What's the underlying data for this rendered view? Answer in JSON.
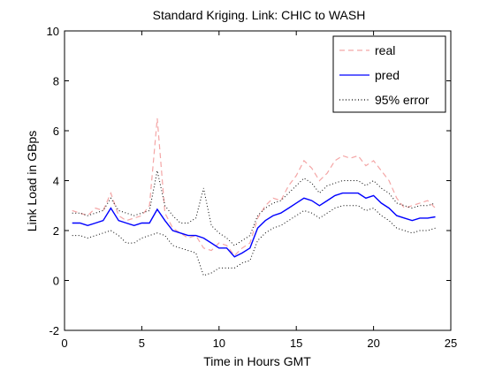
{
  "chart_data": {
    "type": "line",
    "title": "Standard Kriging.  Link:  CHIC to WASH",
    "xlabel": "Time in Hours GMT",
    "ylabel": "Link Load in GBps",
    "xlim": [
      0,
      25
    ],
    "ylim": [
      -2,
      10
    ],
    "xticks": [
      0,
      5,
      10,
      15,
      20,
      25
    ],
    "yticks": [
      -2,
      0,
      2,
      4,
      6,
      8,
      10
    ],
    "grid": false,
    "legend": {
      "placement": "top-right"
    },
    "x": [
      0.5,
      1,
      1.5,
      2,
      2.5,
      3,
      3.5,
      4,
      4.5,
      5,
      5.5,
      6,
      6.5,
      7,
      7.5,
      8,
      8.5,
      9,
      9.5,
      10,
      10.5,
      11,
      11.5,
      12,
      12.5,
      13,
      13.5,
      14,
      14.5,
      15,
      15.5,
      16,
      16.5,
      17,
      17.5,
      18,
      18.5,
      19,
      19.5,
      20,
      20.5,
      21,
      21.5,
      22,
      22.5,
      23,
      23.5,
      24
    ],
    "series": [
      {
        "name": "real",
        "color": "#f4a6a6",
        "style": "dashed",
        "values": [
          2.8,
          2.7,
          2.6,
          2.9,
          2.8,
          3.5,
          2.6,
          2.4,
          2.5,
          2.6,
          3.0,
          6.5,
          2.7,
          2.1,
          1.9,
          1.7,
          1.8,
          1.3,
          1.2,
          1.5,
          1.4,
          1.0,
          1.3,
          1.5,
          2.5,
          3.0,
          3.3,
          3.2,
          3.8,
          4.2,
          4.8,
          4.5,
          4.0,
          4.3,
          4.8,
          5.0,
          4.9,
          5.0,
          4.6,
          4.8,
          4.4,
          4.0,
          3.3,
          2.9,
          3.0,
          3.1,
          3.2,
          2.9
        ]
      },
      {
        "name": "pred",
        "color": "#0000ff",
        "style": "solid",
        "values": [
          2.3,
          2.3,
          2.2,
          2.3,
          2.4,
          2.9,
          2.4,
          2.3,
          2.2,
          2.3,
          2.3,
          2.85,
          2.4,
          2.0,
          1.9,
          1.8,
          1.8,
          1.7,
          1.5,
          1.3,
          1.3,
          0.95,
          1.1,
          1.3,
          2.1,
          2.4,
          2.6,
          2.7,
          2.9,
          3.1,
          3.3,
          3.2,
          3.0,
          3.2,
          3.4,
          3.5,
          3.5,
          3.5,
          3.3,
          3.4,
          3.1,
          2.9,
          2.6,
          2.5,
          2.4,
          2.5,
          2.5,
          2.55
        ]
      },
      {
        "name": "95% error",
        "color": "#000000",
        "style": "dotted",
        "band": true,
        "upper": [
          2.7,
          2.7,
          2.6,
          2.7,
          2.8,
          3.3,
          2.8,
          2.7,
          2.6,
          2.7,
          2.8,
          4.4,
          3.0,
          2.6,
          2.3,
          2.3,
          2.5,
          3.7,
          2.2,
          1.9,
          1.7,
          1.4,
          1.6,
          1.8,
          2.6,
          2.9,
          3.1,
          3.2,
          3.5,
          3.8,
          4.1,
          3.9,
          3.5,
          3.8,
          3.9,
          4.0,
          4.0,
          4.0,
          3.8,
          4.0,
          3.7,
          3.5,
          3.1,
          3.0,
          2.9,
          3.0,
          3.0,
          3.1
        ],
        "lower": [
          1.8,
          1.8,
          1.7,
          1.8,
          1.9,
          2.0,
          1.8,
          1.5,
          1.5,
          1.7,
          1.8,
          1.9,
          1.8,
          1.4,
          1.3,
          1.2,
          1.1,
          0.2,
          0.3,
          0.5,
          0.5,
          0.5,
          0.7,
          0.8,
          1.6,
          1.9,
          2.1,
          2.2,
          2.4,
          2.6,
          2.8,
          2.7,
          2.5,
          2.7,
          2.9,
          3.0,
          3.0,
          3.0,
          2.8,
          2.9,
          2.6,
          2.4,
          2.1,
          2.0,
          1.9,
          2.0,
          2.0,
          2.1
        ]
      }
    ]
  }
}
